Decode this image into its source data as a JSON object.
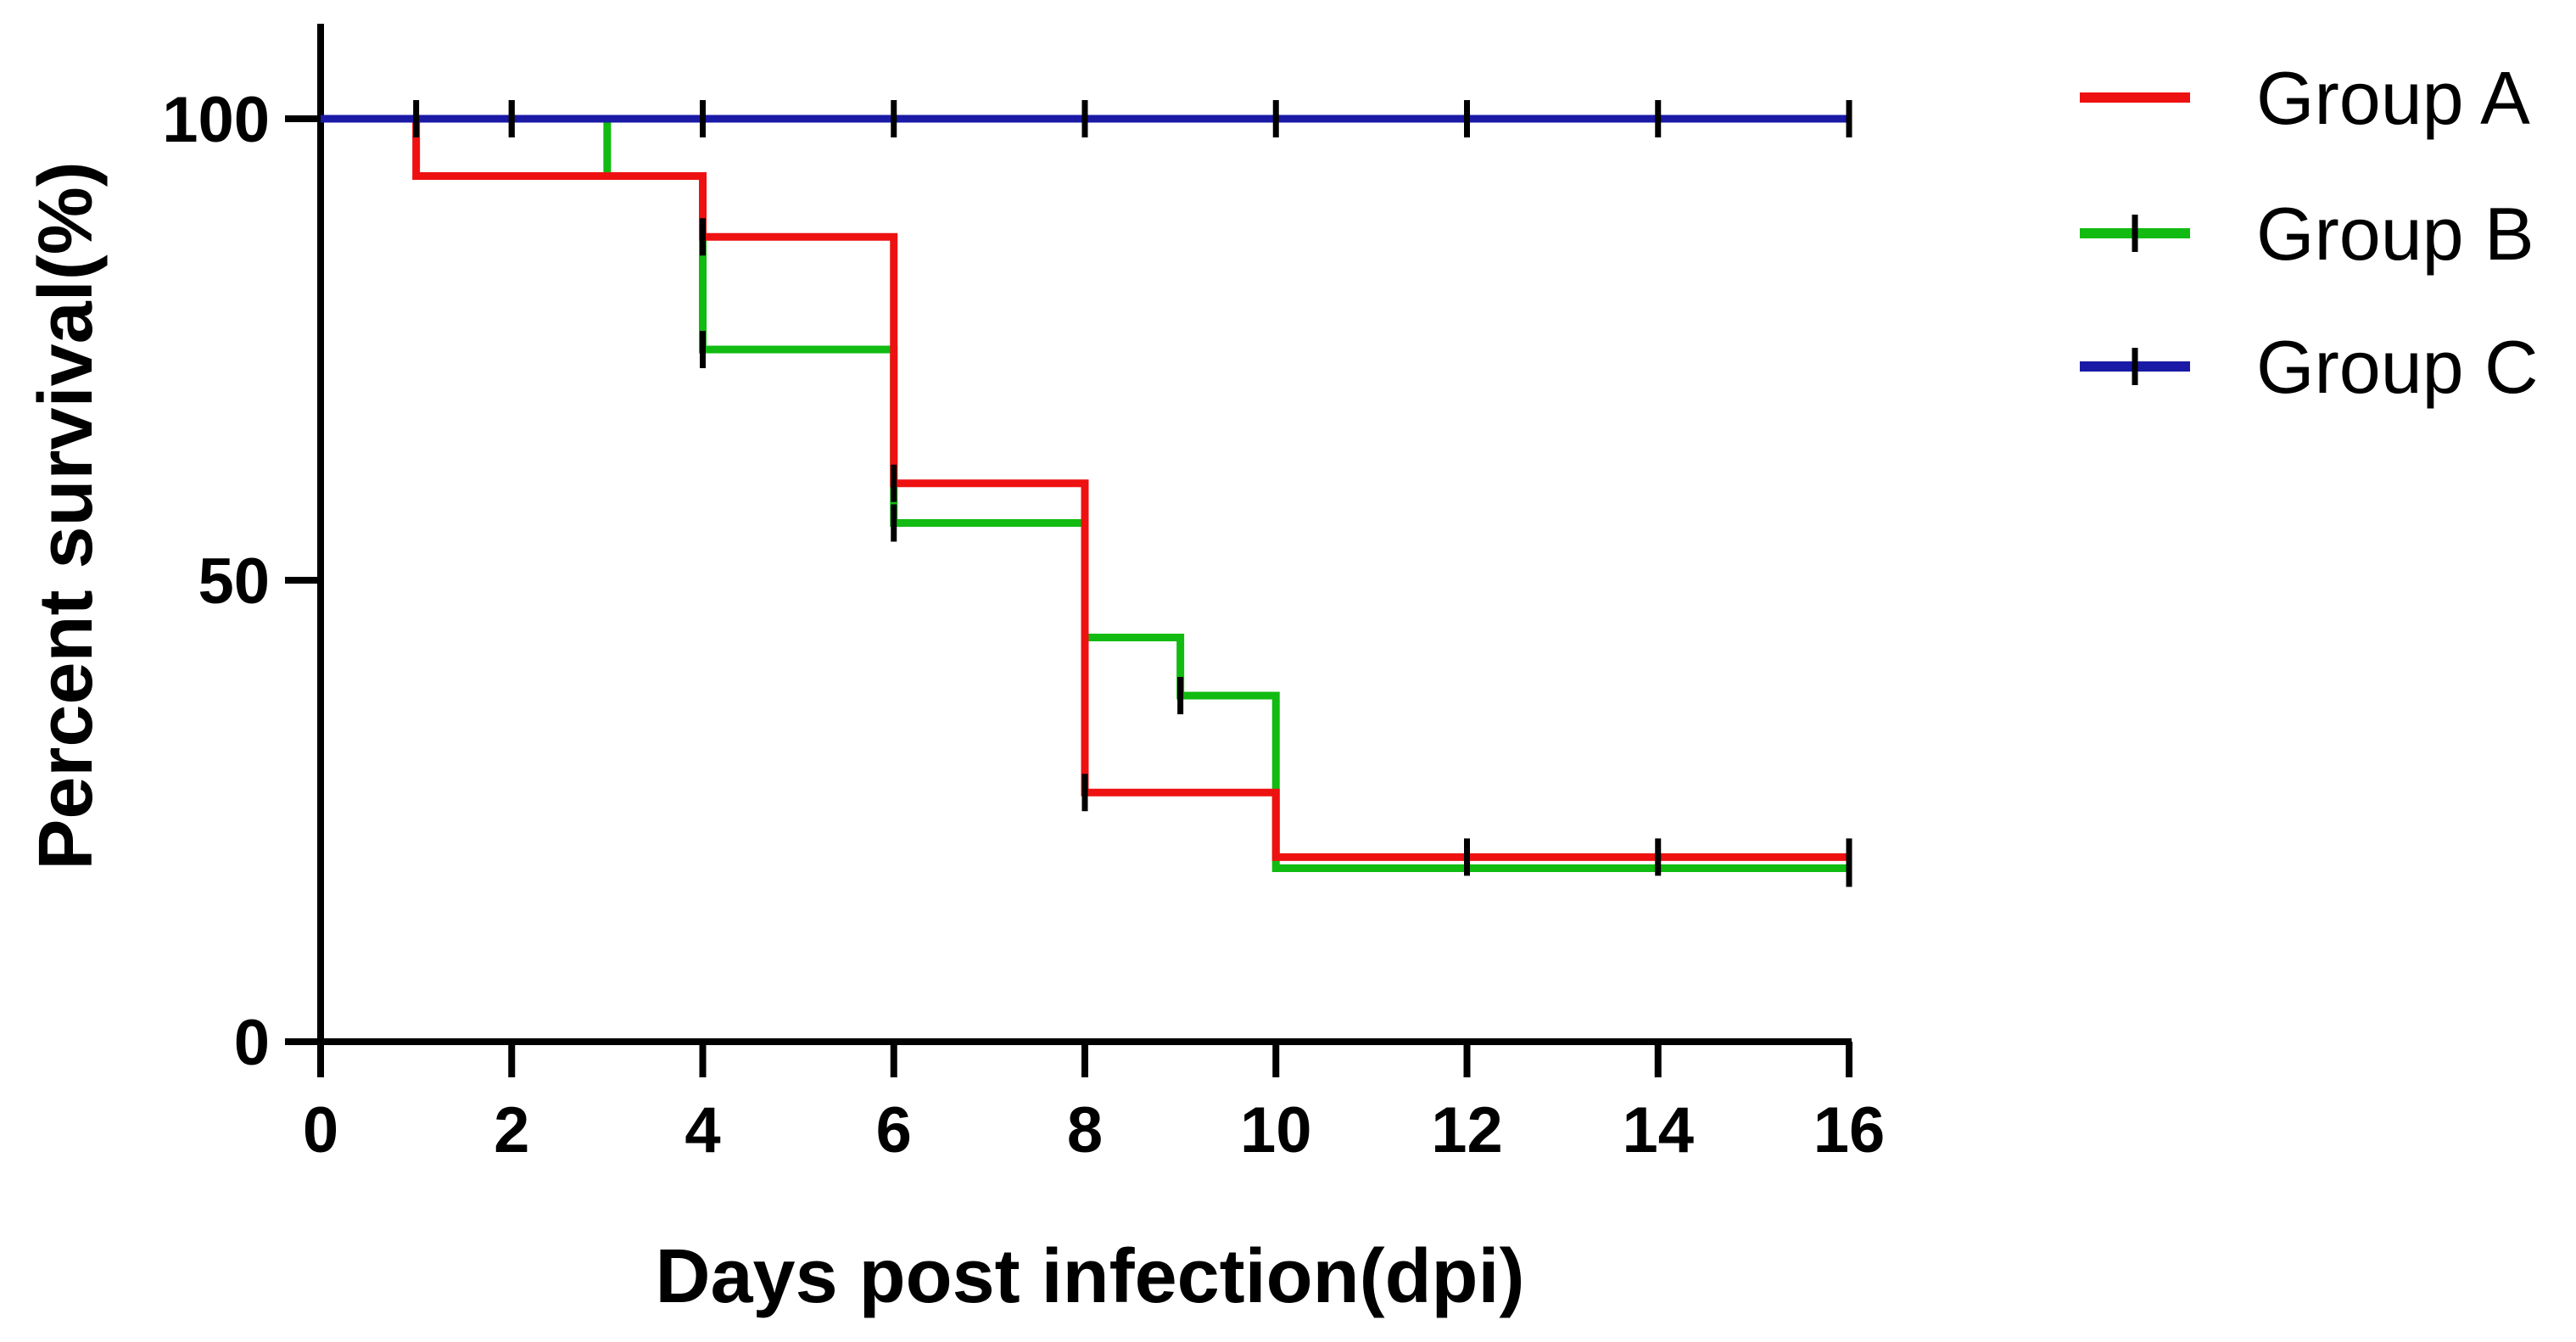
{
  "chart_data": {
    "type": "line",
    "subtype": "kaplan-meier-step",
    "title": "",
    "xlabel": "Days post infection(dpi)",
    "ylabel": "Percent survival(%)",
    "xlim": [
      0,
      16
    ],
    "ylim": [
      0,
      100
    ],
    "xticks": [
      0,
      2,
      4,
      6,
      8,
      10,
      12,
      14,
      16
    ],
    "yticks": [
      0,
      50,
      100
    ],
    "grid": false,
    "legend_position": "top-right",
    "series": [
      {
        "name": "Group A",
        "color": "#ee1111",
        "steps": [
          [
            0,
            100
          ],
          [
            1,
            93.8
          ],
          [
            4,
            87.2
          ],
          [
            6,
            60.5
          ],
          [
            8,
            27.0
          ],
          [
            10,
            20.0
          ],
          [
            16,
            20.0
          ]
        ],
        "censored": [
          [
            4,
            87.2
          ],
          [
            6,
            60.5
          ],
          [
            8,
            27.0
          ],
          [
            12,
            20.0
          ],
          [
            14,
            20.0
          ],
          [
            16,
            20.0
          ]
        ]
      },
      {
        "name": "Group B",
        "color": "#11bb11",
        "steps": [
          [
            0,
            100
          ],
          [
            3,
            93.8
          ],
          [
            4,
            75.0
          ],
          [
            6,
            56.2
          ],
          [
            8,
            43.8
          ],
          [
            9,
            37.5
          ],
          [
            10,
            18.8
          ],
          [
            16,
            18.8
          ]
        ],
        "censored": [
          [
            1,
            100
          ],
          [
            2,
            100
          ],
          [
            4,
            75.0
          ],
          [
            6,
            56.2
          ],
          [
            9,
            37.5
          ],
          [
            16,
            18.8
          ]
        ]
      },
      {
        "name": "Group C",
        "color": "#1a1aa6",
        "steps": [
          [
            0,
            100
          ],
          [
            16,
            100
          ]
        ],
        "censored": [
          [
            2,
            100
          ],
          [
            4,
            100
          ],
          [
            6,
            100
          ],
          [
            8,
            100
          ],
          [
            10,
            100
          ],
          [
            12,
            100
          ],
          [
            14,
            100
          ],
          [
            16,
            100
          ]
        ]
      }
    ]
  }
}
